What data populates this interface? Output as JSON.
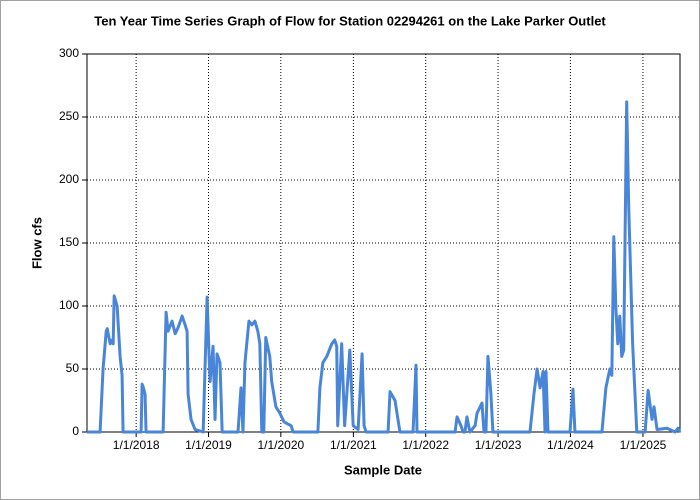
{
  "chart_data": {
    "type": "line",
    "title": "Ten Year Time Series Graph of Flow for Station 02294261 on the Lake Parker Outlet",
    "x_label": "Sample Date",
    "y_label": "Flow cfs",
    "grid": true,
    "xlim": [
      "2017-04-28",
      "2025-07-07"
    ],
    "xticks": [
      {
        "value": "2018-01-01",
        "label": "1/1/2018"
      },
      {
        "value": "2019-01-01",
        "label": "1/1/2019"
      },
      {
        "value": "2020-01-01",
        "label": "1/1/2020"
      },
      {
        "value": "2021-01-01",
        "label": "1/1/2021"
      },
      {
        "value": "2022-01-01",
        "label": "1/1/2022"
      },
      {
        "value": "2023-01-01",
        "label": "1/1/2023"
      },
      {
        "value": "2024-01-01",
        "label": "1/1/2024"
      },
      {
        "value": "2025-01-01",
        "label": "1/1/2025"
      }
    ],
    "ylim": [
      0,
      300
    ],
    "yticks": [
      0,
      50,
      100,
      150,
      200,
      250,
      300
    ],
    "x": [
      "2017-04-28",
      "2017-07-03",
      "2017-07-18",
      "2017-08-03",
      "2017-08-08",
      "2017-08-23",
      "2017-09-02",
      "2017-09-07",
      "2017-09-12",
      "2017-09-27",
      "2017-10-12",
      "2017-10-22",
      "2017-10-27",
      "2018-01-26",
      "2018-01-31",
      "2018-02-05",
      "2018-02-15",
      "2018-02-20",
      "2018-05-17",
      "2018-06-01",
      "2018-06-11",
      "2018-07-01",
      "2018-07-17",
      "2018-08-01",
      "2018-08-21",
      "2018-09-05",
      "2018-09-15",
      "2018-09-20",
      "2018-10-05",
      "2018-10-25",
      "2018-12-05",
      "2018-12-25",
      "2019-01-04",
      "2019-01-09",
      "2019-01-24",
      "2019-02-03",
      "2019-02-13",
      "2019-02-28",
      "2019-03-11",
      "2019-05-30",
      "2019-06-14",
      "2019-06-24",
      "2019-07-04",
      "2019-07-24",
      "2019-08-08",
      "2019-08-23",
      "2019-09-07",
      "2019-09-17",
      "2019-09-27",
      "2019-10-07",
      "2019-10-17",
      "2019-11-06",
      "2019-11-16",
      "2019-12-07",
      "2019-12-27",
      "2020-01-17",
      "2020-02-22",
      "2020-03-03",
      "2020-07-06",
      "2020-07-16",
      "2020-07-31",
      "2020-08-20",
      "2020-09-14",
      "2020-09-29",
      "2020-10-09",
      "2020-10-14",
      "2020-11-03",
      "2020-11-18",
      "2020-12-14",
      "2020-12-31",
      "2021-01-25",
      "2021-02-14",
      "2021-02-24",
      "2021-03-06",
      "2021-06-25",
      "2021-07-05",
      "2021-07-30",
      "2021-08-09",
      "2021-08-24",
      "2021-10-29",
      "2021-11-13",
      "2021-11-18",
      "2022-05-29",
      "2022-06-08",
      "2022-06-28",
      "2022-07-08",
      "2022-07-18",
      "2022-07-28",
      "2022-08-12",
      "2022-09-07",
      "2022-09-17",
      "2022-10-12",
      "2022-10-22",
      "2022-11-01",
      "2022-11-11",
      "2022-11-26",
      "2022-12-06",
      "2023-06-11",
      "2023-07-01",
      "2023-07-17",
      "2023-08-01",
      "2023-08-16",
      "2023-08-26",
      "2023-08-31",
      "2023-09-10",
      "2023-12-30",
      "2024-01-14",
      "2024-01-24",
      "2024-06-08",
      "2024-06-28",
      "2024-07-18",
      "2024-07-28",
      "2024-08-07",
      "2024-08-17",
      "2024-08-27",
      "2024-09-06",
      "2024-09-16",
      "2024-09-26",
      "2024-10-11",
      "2024-10-21",
      "2024-11-10",
      "2024-12-01",
      "2025-01-12",
      "2025-01-27",
      "2025-02-16",
      "2025-02-26",
      "2025-03-13",
      "2025-05-03",
      "2025-06-12",
      "2025-06-27",
      "2025-07-07"
    ],
    "series": [
      {
        "name": "Flow",
        "color": "#4a86d8",
        "values": [
          0,
          0,
          50,
          80,
          82,
          70,
          73,
          70,
          108,
          100,
          60,
          45,
          0,
          0,
          38,
          36,
          30,
          0,
          0,
          95,
          80,
          88,
          78,
          83,
          92,
          85,
          80,
          30,
          10,
          2,
          0,
          107,
          60,
          40,
          68,
          10,
          62,
          55,
          0,
          0,
          35,
          0,
          55,
          88,
          85,
          88,
          80,
          70,
          0,
          0,
          75,
          60,
          40,
          20,
          15,
          8,
          5,
          0,
          0,
          35,
          55,
          60,
          70,
          73,
          68,
          5,
          70,
          5,
          65,
          5,
          2,
          62,
          5,
          0,
          0,
          32,
          25,
          15,
          0,
          0,
          53,
          0,
          0,
          12,
          5,
          0,
          0,
          12,
          0,
          5,
          15,
          23,
          0,
          0,
          60,
          30,
          0,
          0,
          30,
          50,
          35,
          48,
          0,
          48,
          0,
          0,
          34,
          0,
          0,
          35,
          50,
          45,
          155,
          100,
          70,
          92,
          60,
          65,
          262,
          180,
          70,
          0,
          0,
          33,
          10,
          20,
          2,
          3,
          0,
          3,
          0
        ]
      }
    ]
  }
}
